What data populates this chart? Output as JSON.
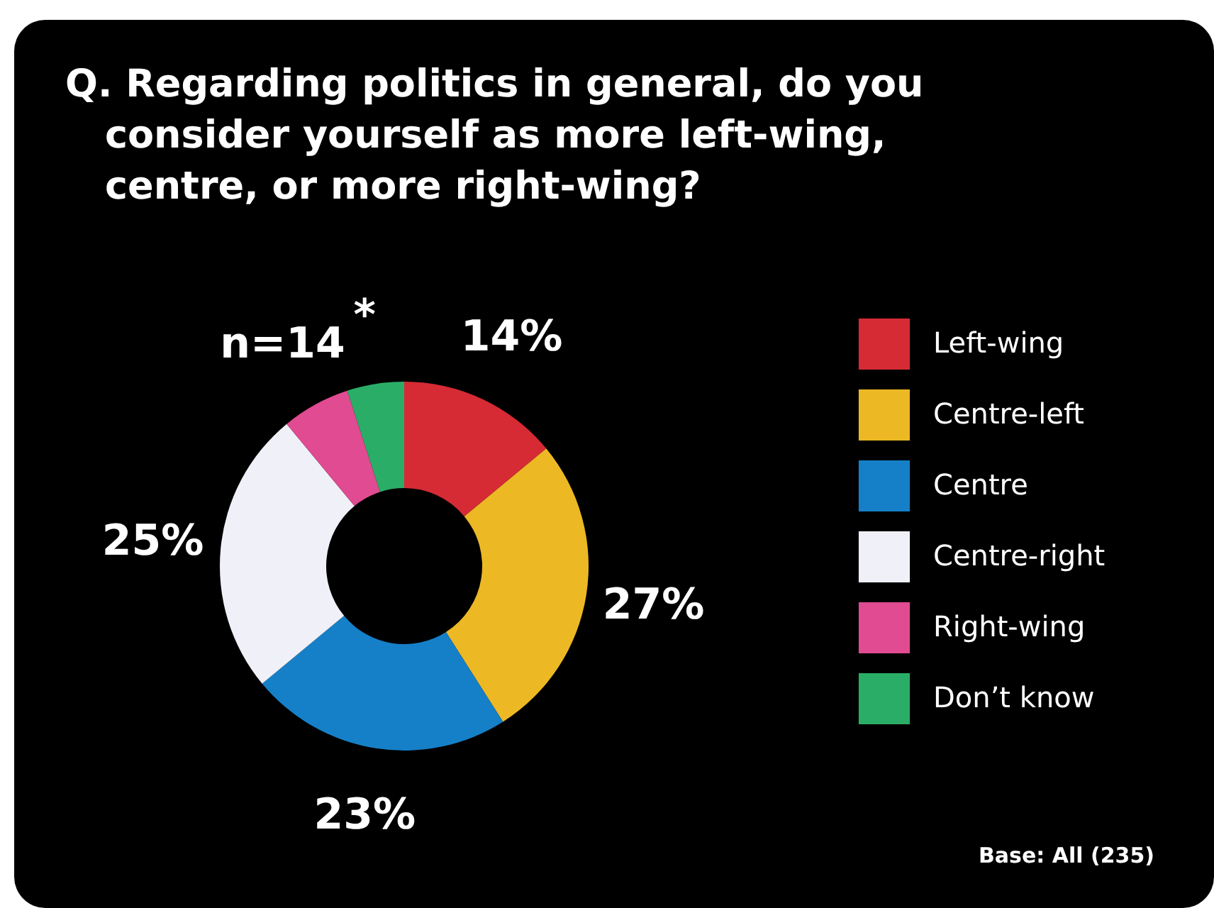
{
  "chart_data": {
    "type": "donut",
    "title": "Q. Regarding politics in general, do you consider yourself as more left-wing, centre, or more right-wing?",
    "categories": [
      "Left-wing",
      "Centre-left",
      "Centre",
      "Centre-right",
      "Right-wing",
      "Don’t know"
    ],
    "values": [
      14,
      27,
      23,
      25,
      6,
      5
    ],
    "colors": [
      "#d62b35",
      "#ecb824",
      "#1580c8",
      "#f0f0f8",
      "#e04b92",
      "#2aae67"
    ],
    "value_labels": [
      "14%",
      "27%",
      "23%",
      "25%",
      null,
      "*"
    ],
    "legend": "right",
    "annotations": [
      {
        "text": "n=14",
        "x": "Right-wing"
      },
      "Base: All (235)"
    ]
  }
}
